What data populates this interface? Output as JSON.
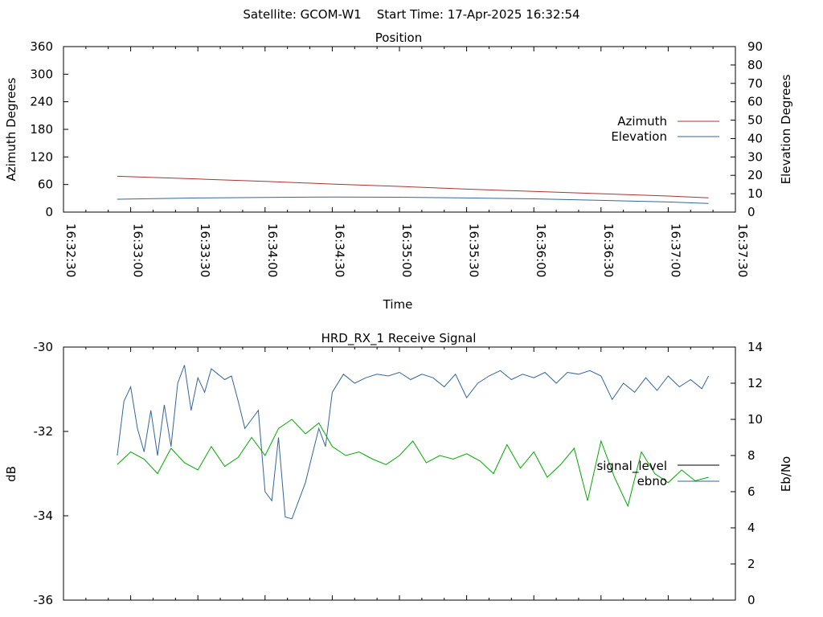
{
  "header": {
    "text": "Satellite: GCOM-W1    Start Time: 17-Apr-2025 16:32:54"
  },
  "chart_data": [
    {
      "type": "line",
      "title": "Position",
      "xlabel": "Time",
      "ylabel_left": "Azimuth Degrees",
      "ylabel_right": "Elevation Degrees",
      "ylim_left": [
        0,
        360
      ],
      "ylim_right": [
        0,
        90
      ],
      "yticks_left": [
        "0",
        "60",
        "120",
        "180",
        "240",
        "300",
        "360"
      ],
      "yticks_right": [
        "0",
        "10",
        "20",
        "30",
        "40",
        "50",
        "60",
        "70",
        "80",
        "90"
      ],
      "xlim": [
        "16:32:30",
        "16:37:30"
      ],
      "xticks": [
        "16:32:30",
        "16:33:00",
        "16:33:30",
        "16:34:00",
        "16:34:30",
        "16:35:00",
        "16:35:30",
        "16:36:00",
        "16:36:30",
        "16:37:00",
        "16:37:30"
      ],
      "grid": false,
      "legend_position": "right",
      "series": [
        {
          "name": "Azimuth",
          "axis": "left",
          "color": "#aa3333",
          "x": [
            "16:32:54",
            "16:33:30",
            "16:34:00",
            "16:34:30",
            "16:35:00",
            "16:35:30",
            "16:36:00",
            "16:36:30",
            "16:37:00",
            "16:37:18"
          ],
          "values": [
            78,
            72,
            67,
            61,
            56,
            50,
            45,
            40,
            35,
            31
          ]
        },
        {
          "name": "Elevation",
          "axis": "right",
          "color": "#336699",
          "x": [
            "16:32:54",
            "16:33:30",
            "16:34:00",
            "16:34:30",
            "16:35:00",
            "16:35:30",
            "16:36:00",
            "16:36:30",
            "16:37:00",
            "16:37:18"
          ],
          "values": [
            7,
            7.7,
            8,
            8.2,
            8.1,
            7.7,
            7.2,
            6.4,
            5.5,
            4.7
          ]
        }
      ]
    },
    {
      "type": "line",
      "title": "HRD_RX_1 Receive Signal",
      "ylabel_left": "dB",
      "ylabel_right": "Eb/No",
      "ylim_left": [
        -36,
        -30
      ],
      "ylim_right": [
        0,
        14
      ],
      "yticks_left": [
        "-36",
        "-34",
        "-32",
        "-30"
      ],
      "yticks_right": [
        "0",
        "2",
        "4",
        "6",
        "8",
        "10",
        "12",
        "14"
      ],
      "xlim": [
        "16:32:30",
        "16:37:30"
      ],
      "grid": false,
      "legend_position": "right",
      "series": [
        {
          "name": "signal_level",
          "axis": "left",
          "color": "#000000",
          "x": [],
          "values": []
        },
        {
          "name": "ebno",
          "axis": "right",
          "color": "#336699",
          "x": [
            "16:32:54",
            "16:32:57",
            "16:33:00",
            "16:33:03",
            "16:33:06",
            "16:33:09",
            "16:33:12",
            "16:33:15",
            "16:33:18",
            "16:33:21",
            "16:33:24",
            "16:33:27",
            "16:33:30",
            "16:33:33",
            "16:33:36",
            "16:33:39",
            "16:33:42",
            "16:33:45",
            "16:33:48",
            "16:33:51",
            "16:33:54",
            "16:33:57",
            "16:34:00",
            "16:34:03",
            "16:34:06",
            "16:34:09",
            "16:34:12",
            "16:34:15",
            "16:34:18",
            "16:34:21",
            "16:34:24",
            "16:34:27",
            "16:34:30",
            "16:34:35",
            "16:34:40",
            "16:34:45",
            "16:34:50",
            "16:34:55",
            "16:35:00",
            "16:35:05",
            "16:35:10",
            "16:35:15",
            "16:35:20",
            "16:35:25",
            "16:35:30",
            "16:35:35",
            "16:35:40",
            "16:35:45",
            "16:35:50",
            "16:35:55",
            "16:36:00",
            "16:36:05",
            "16:36:10",
            "16:36:15",
            "16:36:20",
            "16:36:25",
            "16:36:30",
            "16:36:35",
            "16:36:40",
            "16:36:45",
            "16:36:50",
            "16:36:55",
            "16:37:00",
            "16:37:05",
            "16:37:10",
            "16:37:15",
            "16:37:18"
          ],
          "values": [
            8.0,
            11.0,
            11.8,
            9.5,
            8.2,
            10.5,
            8.0,
            10.8,
            8.5,
            12.0,
            13.0,
            10.5,
            12.3,
            11.5,
            12.8,
            12.5,
            12.2,
            12.4,
            11.0,
            9.5,
            10.0,
            10.5,
            6.0,
            5.5,
            9.0,
            4.6,
            4.5,
            5.5,
            6.5,
            8.0,
            9.5,
            8.5,
            11.5,
            12.5,
            12.0,
            12.3,
            12.5,
            12.4,
            12.6,
            12.2,
            12.5,
            12.3,
            11.8,
            12.5,
            11.2,
            12.0,
            12.4,
            12.7,
            12.2,
            12.5,
            12.3,
            12.6,
            12.0,
            12.6,
            12.5,
            12.7,
            12.4,
            11.1,
            12.0,
            11.5,
            12.3,
            11.6,
            12.4,
            11.8,
            12.2,
            11.7,
            12.4
          ]
        },
        {
          "name": "",
          "axis": "right",
          "color": "#00aa00",
          "x": [
            "16:32:54",
            "16:33:00",
            "16:33:06",
            "16:33:12",
            "16:33:18",
            "16:33:24",
            "16:33:30",
            "16:33:36",
            "16:33:42",
            "16:33:48",
            "16:33:54",
            "16:34:00",
            "16:34:06",
            "16:34:12",
            "16:34:18",
            "16:34:24",
            "16:34:30",
            "16:34:36",
            "16:34:42",
            "16:34:48",
            "16:34:54",
            "16:35:00",
            "16:35:06",
            "16:35:12",
            "16:35:18",
            "16:35:24",
            "16:35:30",
            "16:35:36",
            "16:35:42",
            "16:35:48",
            "16:35:54",
            "16:36:00",
            "16:36:06",
            "16:36:12",
            "16:36:18",
            "16:36:24",
            "16:36:30",
            "16:36:36",
            "16:36:42",
            "16:36:48",
            "16:36:54",
            "16:37:00",
            "16:37:06",
            "16:37:12",
            "16:37:18"
          ],
          "values": [
            7.5,
            8.2,
            7.8,
            7.0,
            8.4,
            7.6,
            7.2,
            8.5,
            7.4,
            7.9,
            9.0,
            8.0,
            9.5,
            10.0,
            9.2,
            9.8,
            8.5,
            8.0,
            8.2,
            7.8,
            7.5,
            8.0,
            8.8,
            7.6,
            8.0,
            7.8,
            8.1,
            7.7,
            7.0,
            8.6,
            7.3,
            8.2,
            6.8,
            7.5,
            8.4,
            5.5,
            8.8,
            6.8,
            5.2,
            8.2,
            7.0,
            6.5,
            7.2,
            6.6,
            6.8
          ]
        }
      ]
    }
  ]
}
